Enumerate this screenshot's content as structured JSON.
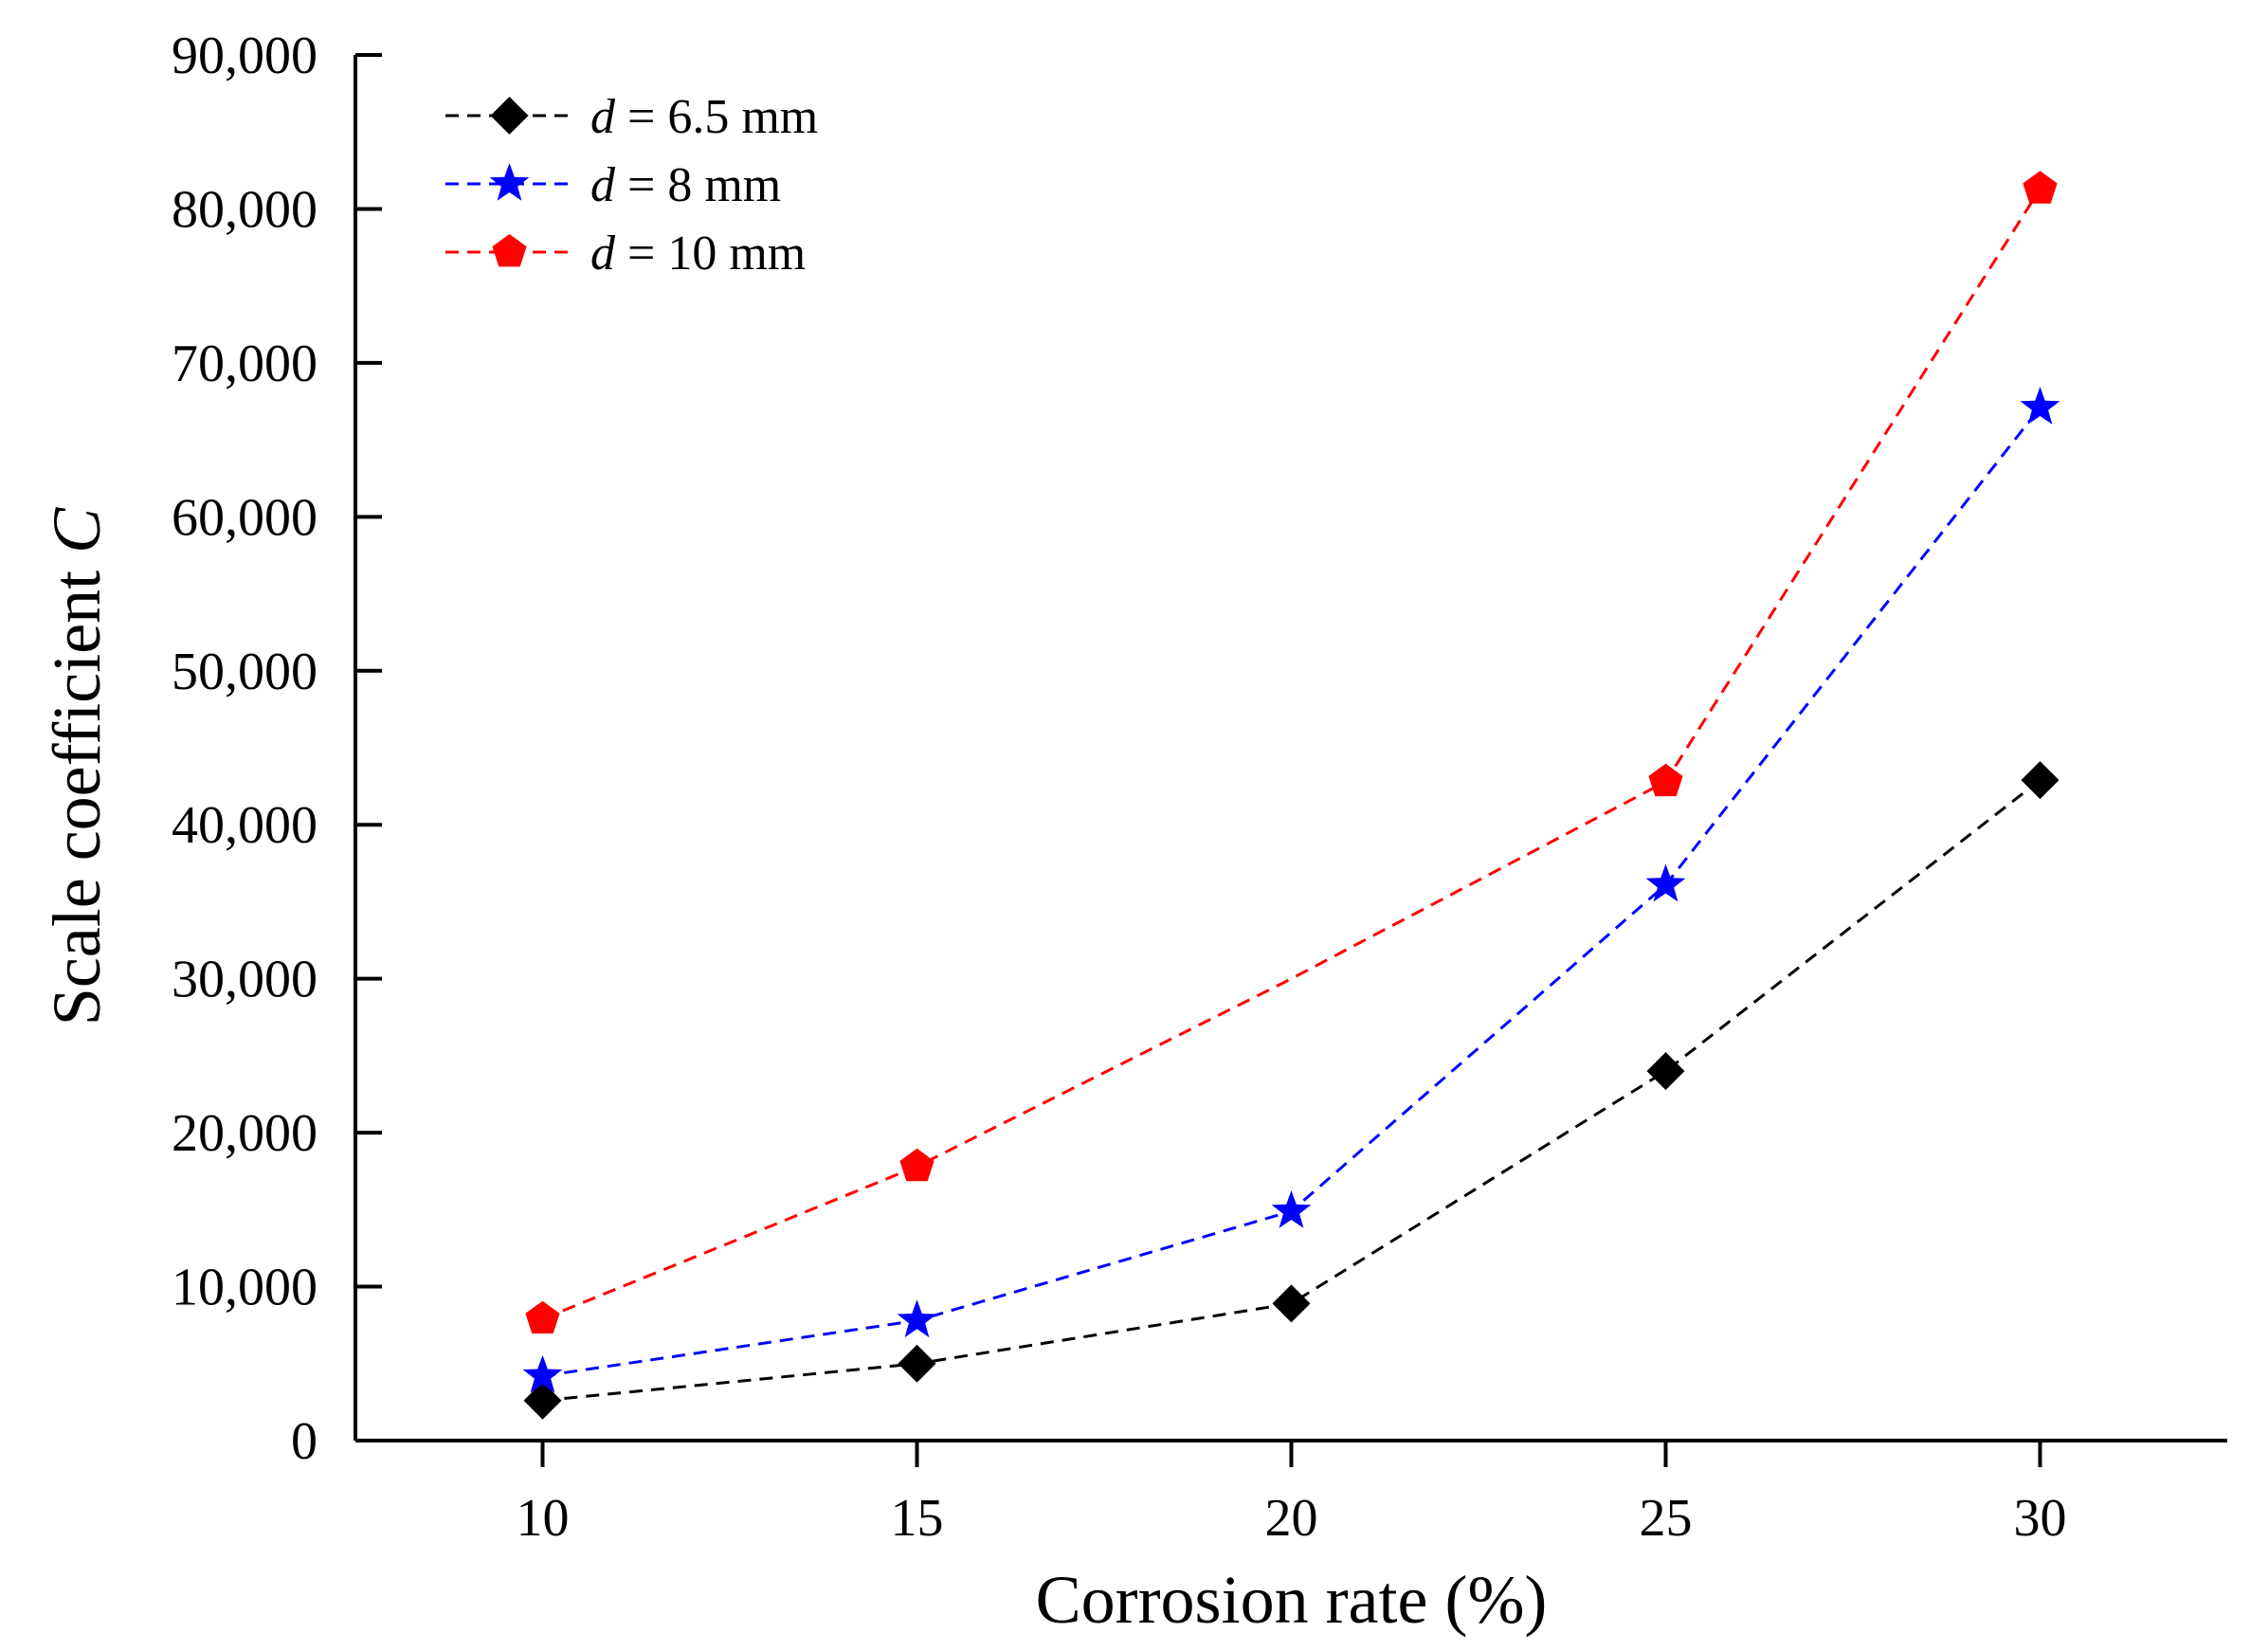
{
  "chart_data": {
    "type": "line",
    "xlabel": "Corrosion rate (%)",
    "ylabel": {
      "prefix": "Scale coefficient ",
      "italic": "C"
    },
    "x": [
      10,
      15,
      20,
      25,
      30
    ],
    "x_ticks": [
      10,
      15,
      20,
      25,
      30
    ],
    "x_tick_labels": [
      "10",
      "15",
      "20",
      "25",
      "30"
    ],
    "xlim": [
      7.5,
      32.5
    ],
    "y_ticks": [
      0,
      10000,
      20000,
      30000,
      40000,
      50000,
      60000,
      70000,
      80000,
      90000
    ],
    "y_tick_labels": [
      "0",
      "10,000",
      "20,000",
      "30,000",
      "40,000",
      "50,000",
      "60,000",
      "70,000",
      "80,000",
      "90,000"
    ],
    "ylim": [
      0,
      90000
    ],
    "grid": false,
    "legend_position": "top-left",
    "series": [
      {
        "name_italic": "d",
        "name_rest": " = 6.5 mm",
        "color": "#000000",
        "marker": "diamond",
        "line_style": "dashed",
        "values": [
          2600,
          5000,
          8900,
          24000,
          42900
        ]
      },
      {
        "name_italic": "d",
        "name_rest": " = 8 mm",
        "color": "#0000ff",
        "marker": "star",
        "line_style": "dashed",
        "values": [
          4200,
          7800,
          14900,
          36100,
          67100
        ]
      },
      {
        "name_italic": "d",
        "name_rest": " = 10 mm",
        "color": "#ff0000",
        "marker": "pentagon",
        "line_style": "dashed",
        "values": [
          7900,
          17800,
          30000,
          42800,
          81300
        ]
      }
    ]
  }
}
